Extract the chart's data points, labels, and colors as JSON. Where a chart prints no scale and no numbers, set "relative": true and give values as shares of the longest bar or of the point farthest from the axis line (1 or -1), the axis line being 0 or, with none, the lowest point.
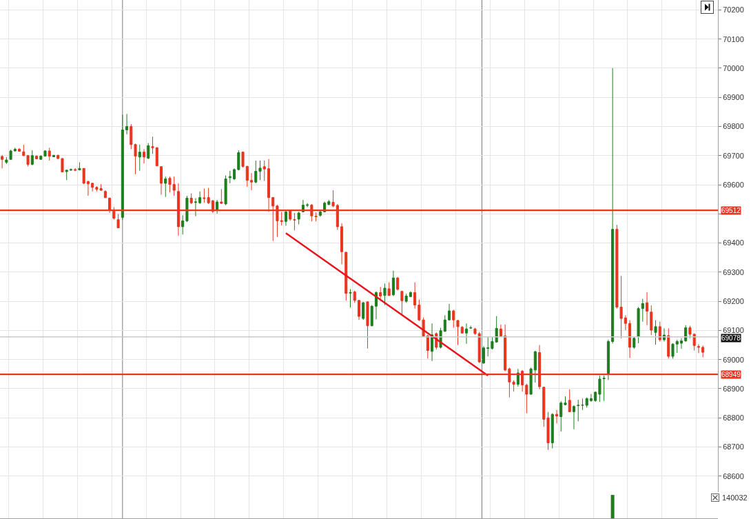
{
  "chart_data": [
    {
      "type": "candlestick",
      "categories": [
        null,
        null,
        null,
        null,
        null,
        null,
        null,
        null,
        null,
        null,
        null,
        null,
        null,
        null,
        null,
        null,
        null,
        null,
        null,
        null,
        null,
        null,
        null,
        null,
        null,
        null,
        null,
        null,
        null,
        null,
        null,
        null,
        null,
        null,
        null,
        null,
        null,
        null,
        null,
        null,
        null,
        null,
        null,
        null,
        null,
        null,
        null,
        null,
        null,
        null,
        null,
        null,
        null,
        null,
        null,
        null,
        null,
        null,
        null,
        null,
        null,
        null,
        null,
        null,
        null,
        null,
        null,
        null,
        null,
        null,
        null,
        null,
        null,
        null,
        null,
        null,
        null,
        null,
        null,
        null,
        null,
        null,
        null,
        null,
        null,
        null,
        null,
        null,
        null,
        null,
        null,
        null,
        null,
        null,
        null,
        null,
        null,
        null,
        null,
        null,
        null,
        null,
        null,
        null,
        null,
        null,
        null,
        null,
        null,
        null,
        null,
        null,
        null,
        null,
        null,
        null,
        null,
        null,
        null,
        null,
        null,
        null,
        null,
        null,
        null,
        null,
        null,
        null,
        null,
        null,
        null,
        null,
        null,
        null,
        null,
        null,
        null,
        null,
        null,
        null,
        null,
        null,
        null,
        null,
        null,
        null,
        null,
        null,
        null,
        null,
        null,
        null,
        null,
        null,
        null,
        null,
        null,
        null,
        null,
        null,
        null,
        null,
        null,
        null,
        null,
        null,
        null
      ],
      "ohlc": [
        [
          69697,
          69702,
          69656,
          69687
        ],
        [
          69677,
          69695,
          69671,
          69685
        ],
        [
          69687,
          69720,
          69685,
          69716
        ],
        [
          69716,
          69727,
          69714,
          69722
        ],
        [
          69722,
          69726,
          69713,
          69715
        ],
        [
          69713,
          69737,
          69698,
          69700
        ],
        [
          69700,
          69702,
          69663,
          69670
        ],
        [
          69670,
          69718,
          69667,
          69700
        ],
        [
          69698,
          69701,
          69688,
          69689
        ],
        [
          69687,
          69701,
          69685,
          69698
        ],
        [
          69698,
          69718,
          69697,
          69716
        ],
        [
          69716,
          69727,
          69683,
          69698
        ],
        [
          69696,
          69702,
          69695,
          69701
        ],
        [
          69701,
          69703,
          69688,
          69690
        ],
        [
          69690,
          69691,
          69643,
          69644
        ],
        [
          69645,
          69652,
          69616,
          69650
        ],
        [
          69650,
          69656,
          69648,
          69652
        ],
        [
          69652,
          69657,
          69646,
          69650
        ],
        [
          69651,
          69677,
          69649,
          69656
        ],
        [
          69656,
          69657,
          69602,
          69605
        ],
        [
          69611,
          69613,
          69562,
          69603
        ],
        [
          69605,
          69607,
          69577,
          69591
        ],
        [
          69591,
          69595,
          69577,
          69584
        ],
        [
          69587,
          69602,
          69579,
          69581
        ],
        [
          69577,
          69581,
          69554,
          69556
        ],
        [
          69554,
          69556,
          69503,
          69515
        ],
        [
          69509,
          69523,
          69480,
          69485
        ],
        [
          69480,
          69499,
          69451,
          69452
        ],
        [
          69488,
          69840,
          69480,
          69788
        ],
        [
          69788,
          69843,
          69773,
          69800
        ],
        [
          69800,
          69808,
          69722,
          69738
        ],
        [
          69738,
          69741,
          69636,
          69698
        ],
        [
          69695,
          69738,
          69648,
          69712
        ],
        [
          69712,
          69722,
          69673,
          69695
        ],
        [
          69691,
          69743,
          69688,
          69734
        ],
        [
          69731,
          69765,
          69706,
          69727
        ],
        [
          69727,
          69729,
          69663,
          69665
        ],
        [
          69662,
          69664,
          69566,
          69605
        ],
        [
          69605,
          69628,
          69558,
          69620
        ],
        [
          69622,
          69628,
          69574,
          69601
        ],
        [
          69601,
          69628,
          69562,
          69581
        ],
        [
          69577,
          69605,
          69425,
          69456
        ],
        [
          69456,
          69495,
          69429,
          69476
        ],
        [
          69476,
          69562,
          69472,
          69554
        ],
        [
          69554,
          69570,
          69534,
          69538
        ],
        [
          69539,
          69554,
          69492,
          69541
        ],
        [
          69538,
          69577,
          69534,
          69556
        ],
        [
          69555,
          69587,
          69538,
          69553
        ],
        [
          69556,
          69589,
          69534,
          69538
        ],
        [
          69545,
          69548,
          69503,
          69509
        ],
        [
          69515,
          69548,
          69501,
          69541
        ],
        [
          69541,
          69585,
          69534,
          69536
        ],
        [
          69534,
          69632,
          69530,
          69620
        ],
        [
          69624,
          69648,
          69605,
          69628
        ],
        [
          69620,
          69656,
          69616,
          69652
        ],
        [
          69652,
          69718,
          69649,
          69710
        ],
        [
          69712,
          69714,
          69659,
          69663
        ],
        [
          69663,
          69665,
          69593,
          69615
        ],
        [
          69615,
          69640,
          69581,
          69609
        ],
        [
          69609,
          69683,
          69605,
          69646
        ],
        [
          69646,
          69683,
          69616,
          69657
        ],
        [
          69662,
          69683,
          69613,
          69654
        ],
        [
          69655,
          69688,
          69507,
          69556
        ],
        [
          69556,
          69558,
          69407,
          69527
        ],
        [
          69527,
          69531,
          69421,
          69476
        ],
        [
          69477,
          69507,
          69460,
          69474
        ],
        [
          69474,
          69515,
          69459,
          69507
        ],
        [
          69513,
          69515,
          69476,
          69482
        ],
        [
          69480,
          69503,
          69443,
          69479
        ],
        [
          69482,
          69507,
          69464,
          69503
        ],
        [
          69507,
          69548,
          69505,
          69530
        ],
        [
          69529,
          69537,
          69523,
          69531
        ],
        [
          69530,
          69534,
          69474,
          69493
        ],
        [
          69492,
          69505,
          69474,
          69490
        ],
        [
          69495,
          69513,
          69490,
          69507
        ],
        [
          69507,
          69542,
          69505,
          69537
        ],
        [
          69532,
          69548,
          69530,
          69542
        ],
        [
          69540,
          69581,
          69523,
          69527
        ],
        [
          69529,
          69534,
          69445,
          69456
        ],
        [
          69456,
          69468,
          69327,
          69370
        ],
        [
          69368,
          69370,
          69202,
          69227
        ],
        [
          69228,
          69242,
          69179,
          69230
        ],
        [
          69232,
          69237,
          69195,
          69203
        ],
        [
          69203,
          69205,
          69136,
          69148
        ],
        [
          69141,
          69198,
          69136,
          69195
        ],
        [
          69198,
          69200,
          69038,
          69116
        ],
        [
          69116,
          69187,
          69114,
          69183
        ],
        [
          69183,
          69234,
          69138,
          69230
        ],
        [
          69230,
          69249,
          69202,
          69218
        ],
        [
          69220,
          69261,
          69187,
          69245
        ],
        [
          69243,
          69265,
          69218,
          69220
        ],
        [
          69222,
          69305,
          69218,
          69280
        ],
        [
          69280,
          69284,
          69237,
          69241
        ],
        [
          69234,
          69236,
          69155,
          69202
        ],
        [
          69200,
          69226,
          69195,
          69218
        ],
        [
          69216,
          69234,
          69214,
          69230
        ],
        [
          69230,
          69265,
          69175,
          69187
        ],
        [
          69187,
          69206,
          69132,
          69136
        ],
        [
          69136,
          69144,
          69077,
          69081
        ],
        [
          69081,
          69085,
          69003,
          69031
        ],
        [
          69028,
          69124,
          68995,
          69085
        ],
        [
          69089,
          69093,
          69034,
          69042
        ],
        [
          69042,
          69109,
          69038,
          69099
        ],
        [
          69097,
          69152,
          69095,
          69136
        ],
        [
          69136,
          69191,
          69134,
          69167
        ],
        [
          69167,
          69171,
          69109,
          69136
        ],
        [
          69134,
          69136,
          69050,
          69113
        ],
        [
          69111,
          69115,
          69089,
          69091
        ],
        [
          69091,
          69124,
          69054,
          69105
        ],
        [
          69108,
          69116,
          69105,
          69109
        ],
        [
          69105,
          69109,
          69085,
          69089
        ],
        [
          69089,
          69095,
          68988,
          68992
        ],
        [
          68988,
          69046,
          68985,
          69040
        ],
        [
          69038,
          69077,
          69011,
          69040
        ],
        [
          69038,
          69077,
          69034,
          69062
        ],
        [
          69060,
          69149,
          69058,
          69107
        ],
        [
          69105,
          69120,
          69077,
          69081
        ],
        [
          69081,
          69120,
          68960,
          68964
        ],
        [
          68968,
          68972,
          68870,
          68923
        ],
        [
          68923,
          68929,
          68890,
          68915
        ],
        [
          68915,
          68968,
          68907,
          68954
        ],
        [
          68960,
          68964,
          68890,
          68913
        ],
        [
          68912,
          68917,
          68816,
          68881
        ],
        [
          68881,
          68972,
          68879,
          68968
        ],
        [
          68964,
          69030,
          68921,
          69027
        ],
        [
          69024,
          69050,
          68898,
          68907
        ],
        [
          68905,
          68907,
          68769,
          68795
        ],
        [
          68800,
          68820,
          68690,
          68714
        ],
        [
          68714,
          68816,
          68695,
          68812
        ],
        [
          68812,
          68827,
          68781,
          68806
        ],
        [
          68804,
          68857,
          68753,
          68851
        ],
        [
          68845,
          68874,
          68843,
          68851
        ],
        [
          68860,
          68898,
          68820,
          68821
        ],
        [
          68821,
          68843,
          68761,
          68839
        ],
        [
          68842,
          68862,
          68788,
          68843
        ],
        [
          68843,
          68866,
          68827,
          68844
        ],
        [
          68843,
          68870,
          68835,
          68866
        ],
        [
          68859,
          68882,
          68855,
          68866
        ],
        [
          68859,
          68891,
          68855,
          68888
        ],
        [
          68881,
          68945,
          68855,
          68933
        ],
        [
          68934,
          68945,
          68858,
          68936
        ],
        [
          68949,
          69068,
          68930,
          69062
        ],
        [
          69062,
          70000,
          69055,
          69447
        ],
        [
          69447,
          69462,
          69175,
          69180
        ],
        [
          69180,
          69287,
          69073,
          69141
        ],
        [
          69143,
          69152,
          69101,
          69124
        ],
        [
          69124,
          69135,
          69006,
          69042
        ],
        [
          69042,
          69079,
          69037,
          69073
        ],
        [
          69079,
          69180,
          69056,
          69175
        ],
        [
          69175,
          69208,
          69130,
          69192
        ],
        [
          69195,
          69231,
          69118,
          69166
        ],
        [
          69163,
          69186,
          69084,
          69101
        ],
        [
          69093,
          69135,
          69051,
          69113
        ],
        [
          69113,
          69130,
          69062,
          69068
        ],
        [
          69068,
          69107,
          69062,
          69084
        ],
        [
          69082,
          69107,
          69003,
          69011
        ],
        [
          69011,
          69056,
          69003,
          69053
        ],
        [
          69053,
          69068,
          69023,
          69062
        ],
        [
          69056,
          69073,
          69037,
          69064
        ],
        [
          69064,
          69118,
          69060,
          69109
        ],
        [
          69109,
          69116,
          69073,
          69087
        ],
        [
          69087,
          69090,
          69031,
          69048
        ],
        [
          69045,
          69053,
          69022,
          69042
        ],
        [
          69042,
          69048,
          69008,
          69025
        ],
        null,
        null,
        null
      ],
      "colors": [
        "#e8351e",
        "#1e7d1e",
        "#1e7d1e",
        "#1e7d1e",
        "#e8351e",
        "#e8351e",
        "#e8351e",
        "#1e7d1e",
        "#e8351e",
        "#1e7d1e",
        "#1e7d1e",
        "#e8351e",
        "#1e7d1e",
        "#e8351e",
        "#e8351e",
        "#1e7d1e",
        "#1e7d1e",
        "#e8351e",
        "#1e7d1e",
        "#e8351e",
        "#e8351e",
        "#e8351e",
        "#e8351e",
        "#e8351e",
        "#e8351e",
        "#e8351e",
        "#e8351e",
        "#e8351e",
        "#1e7d1e",
        "#1e7d1e",
        "#e8351e",
        "#e8351e",
        "#1e7d1e",
        "#e8351e",
        "#1e7d1e",
        "#e8351e",
        "#e8351e",
        "#e8351e",
        "#1e7d1e",
        "#e8351e",
        "#e8351e",
        "#e8351e",
        "#1e7d1e",
        "#1e7d1e",
        "#e8351e",
        "#1e7d1e",
        "#1e7d1e",
        "#e8351e",
        "#e8351e",
        "#e8351e",
        "#1e7d1e",
        "#e8351e",
        "#1e7d1e",
        "#1e7d1e",
        "#1e7d1e",
        "#1e7d1e",
        "#e8351e",
        "#e8351e",
        "#e8351e",
        "#1e7d1e",
        "#1e7d1e",
        "#e8351e",
        "#e8351e",
        "#e8351e",
        "#e8351e",
        "#e8351e",
        "#1e7d1e",
        "#e8351e",
        "#e8351e",
        "#1e7d1e",
        "#1e7d1e",
        "#1e7d1e",
        "#e8351e",
        "#e8351e",
        "#1e7d1e",
        "#1e7d1e",
        "#1e7d1e",
        "#e8351e",
        "#e8351e",
        "#e8351e",
        "#e8351e",
        "#1e7d1e",
        "#e8351e",
        "#e8351e",
        "#1e7d1e",
        "#e8351e",
        "#1e7d1e",
        "#1e7d1e",
        "#e8351e",
        "#1e7d1e",
        "#e8351e",
        "#1e7d1e",
        "#e8351e",
        "#e8351e",
        "#1e7d1e",
        "#1e7d1e",
        "#e8351e",
        "#e8351e",
        "#e8351e",
        "#e8351e",
        "#1e7d1e",
        "#e8351e",
        "#1e7d1e",
        "#1e7d1e",
        "#1e7d1e",
        "#e8351e",
        "#e8351e",
        "#e8351e",
        "#1e7d1e",
        "#1e7d1e",
        "#e8351e",
        "#e8351e",
        "#1e7d1e",
        "#1e7d1e",
        "#1e7d1e",
        "#1e7d1e",
        "#e8351e",
        "#e8351e",
        "#e8351e",
        "#e8351e",
        "#1e7d1e",
        "#e8351e",
        "#e8351e",
        "#1e7d1e",
        "#1e7d1e",
        "#e8351e",
        "#e8351e",
        "#e8351e",
        "#1e7d1e",
        "#e8351e",
        "#1e7d1e",
        "#1e7d1e",
        "#e8351e",
        "#1e7d1e",
        "#1e7d1e",
        "#1e7d1e",
        "#1e7d1e",
        "#1e7d1e",
        "#1e7d1e",
        "#1e7d1e",
        "#1e7d1e",
        "#1e7d1e",
        "#1e7d1e",
        "#e8351e",
        "#e8351e",
        "#e8351e",
        "#e8351e",
        "#1e7d1e",
        "#1e7d1e",
        "#1e7d1e",
        "#e8351e",
        "#e8351e",
        "#1e7d1e",
        "#e8351e",
        "#1e7d1e",
        "#e8351e",
        "#1e7d1e",
        "#1e7d1e",
        "#1e7d1e",
        "#1e7d1e",
        "#e8351e",
        "#e8351e",
        "#e8351e",
        "#e8351e",
        null,
        null,
        null
      ],
      "series": [
        {
          "type": "line",
          "color": "#e8141b",
          "values": [
            null,
            null,
            null,
            null,
            null,
            null,
            null,
            null,
            null,
            null,
            null,
            null,
            null,
            null,
            null,
            null,
            null,
            null,
            null,
            null,
            null,
            null,
            null,
            null,
            null,
            null,
            null,
            null,
            null,
            null,
            null,
            null,
            null,
            null,
            null,
            null,
            null,
            null,
            null,
            null,
            null,
            null,
            null,
            null,
            null,
            null,
            null,
            null,
            null,
            null,
            null,
            null,
            null,
            null,
            null,
            null,
            null,
            null,
            null,
            null,
            null,
            null,
            null,
            null,
            null,
            null,
            69434,
            null,
            null,
            null,
            null,
            null,
            null,
            null,
            null,
            null,
            null,
            null,
            null,
            null,
            null,
            null,
            null,
            null,
            null,
            null,
            null,
            null,
            null,
            null,
            null,
            null,
            null,
            null,
            null,
            null,
            null,
            null,
            null,
            null,
            null,
            null,
            null,
            null,
            null,
            null,
            null,
            null,
            null,
            null,
            null,
            null,
            null,
            68945,
            null,
            null,
            null,
            null,
            null,
            null,
            null,
            null,
            null,
            null,
            null,
            null,
            null,
            null,
            null,
            null,
            null,
            null,
            null,
            null,
            null,
            null,
            null,
            null,
            null,
            null,
            null,
            null,
            null,
            null,
            null,
            null,
            null,
            null,
            null,
            null,
            null,
            null,
            null,
            null,
            null,
            null,
            null,
            null,
            null,
            null,
            null,
            null,
            null,
            null,
            null,
            null,
            null
          ]
        }
      ],
      "ylim": [
        68545,
        70234
      ],
      "yticks": [
        68600,
        68700,
        68800,
        68900,
        69000,
        69100,
        69200,
        69300,
        69400,
        {
          "value": 69500,
          "label": null
        },
        69600,
        69700,
        69800,
        69900,
        70000,
        70100,
        70200
      ],
      "grid": true,
      "tick_labels": "y",
      "ref_lines": [
        {
          "axis": "y",
          "value": 69512,
          "label": "69512",
          "color": "#e8351e"
        },
        {
          "axis": "y",
          "value": 68949,
          "label": "68949",
          "color": "#e8351e"
        },
        {
          "axis": "y",
          "value": 69078,
          "label": "69078",
          "color": "#c8c8c8"
        }
      ]
    },
    {
      "type": "bar",
      "relative": true,
      "categories": [
        null,
        null,
        null,
        null,
        null,
        null,
        null,
        null,
        null,
        null,
        null,
        null,
        null,
        null,
        null,
        null,
        null,
        null,
        null,
        null,
        null,
        null,
        null,
        null,
        null,
        null,
        null,
        null,
        null,
        null,
        null,
        null,
        null,
        null,
        null,
        null,
        null,
        null,
        null,
        null,
        null,
        null,
        null,
        null,
        null,
        null,
        null,
        null,
        null,
        null,
        null,
        null,
        null,
        null,
        null,
        null,
        null,
        null,
        null,
        null,
        null,
        null,
        null,
        null,
        null,
        null,
        null,
        null,
        null,
        null,
        null,
        null,
        null,
        null,
        null,
        null,
        null,
        null,
        null,
        null,
        null,
        null,
        null,
        null,
        null,
        null,
        null,
        null,
        null,
        null,
        null,
        null,
        null,
        null,
        null,
        null,
        null,
        null,
        null,
        null,
        null,
        null,
        null,
        null,
        null,
        null,
        null,
        null,
        null,
        null,
        null,
        null,
        null,
        null,
        null,
        null,
        null,
        null,
        null,
        null,
        null,
        null,
        null,
        null,
        null,
        null,
        null,
        null,
        null,
        null,
        null,
        null,
        null,
        null,
        null,
        null,
        null,
        null,
        null,
        null,
        null,
        null,
        null,
        null,
        null,
        null,
        null,
        null,
        null,
        null,
        null,
        null,
        null,
        null,
        null,
        null,
        null,
        null,
        null,
        null,
        null,
        null,
        null,
        null,
        null,
        null,
        null
      ],
      "values": [
        null,
        null,
        null,
        null,
        null,
        null,
        null,
        null,
        null,
        null,
        null,
        null,
        null,
        null,
        null,
        null,
        null,
        null,
        null,
        null,
        null,
        null,
        null,
        null,
        null,
        null,
        null,
        null,
        null,
        null,
        null,
        null,
        null,
        null,
        null,
        null,
        null,
        null,
        null,
        null,
        null,
        null,
        null,
        null,
        null,
        null,
        null,
        null,
        null,
        null,
        null,
        null,
        null,
        null,
        null,
        null,
        null,
        null,
        null,
        null,
        null,
        null,
        null,
        null,
        null,
        null,
        null,
        null,
        null,
        null,
        null,
        null,
        null,
        null,
        null,
        null,
        null,
        null,
        null,
        null,
        null,
        null,
        null,
        null,
        null,
        null,
        null,
        null,
        null,
        null,
        null,
        null,
        null,
        null,
        null,
        null,
        null,
        null,
        null,
        null,
        null,
        null,
        null,
        null,
        null,
        null,
        null,
        null,
        null,
        null,
        null,
        null,
        null,
        null,
        null,
        null,
        null,
        null,
        null,
        null,
        null,
        null,
        null,
        null,
        null,
        null,
        null,
        null,
        null,
        null,
        null,
        null,
        null,
        null,
        null,
        null,
        null,
        null,
        null,
        null,
        null,
        null,
        1,
        null,
        null,
        null,
        null,
        null,
        null,
        null,
        null,
        null,
        null,
        null,
        null,
        null,
        null,
        null,
        null,
        null,
        null,
        null,
        null,
        null,
        null,
        null,
        null
      ],
      "color": "#1e7d1e",
      "grid": "x",
      "tick_labels": false,
      "annotations": [
        "140032"
      ]
    }
  ]
}
